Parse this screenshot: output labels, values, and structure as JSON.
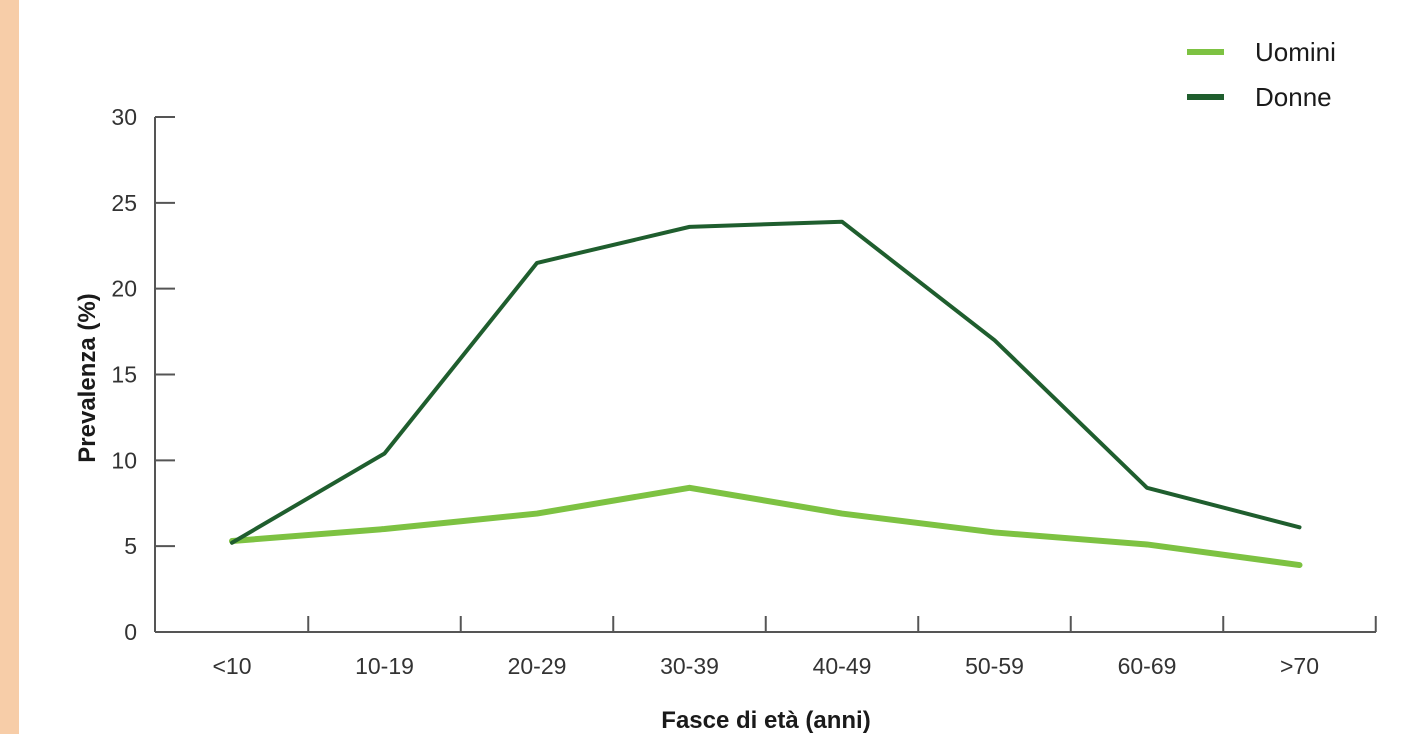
{
  "chart_data": {
    "type": "line",
    "categories": [
      "<10",
      "10-19",
      "20-29",
      "30-39",
      "40-49",
      "50-59",
      "60-69",
      ">70"
    ],
    "series": [
      {
        "name": "Uomini",
        "color": "#7dc242",
        "values": [
          5.3,
          6.0,
          6.9,
          8.4,
          6.9,
          5.8,
          5.1,
          3.9
        ]
      },
      {
        "name": "Donne",
        "color": "#1f5e2e",
        "values": [
          5.2,
          10.4,
          21.5,
          23.6,
          23.9,
          17.0,
          8.4,
          6.1
        ]
      }
    ],
    "title": "",
    "xlabel": "Fasce di età (anni)",
    "ylabel": "Prevalenza (%)",
    "ylim": [
      0,
      30
    ],
    "yticks": [
      0,
      5,
      10,
      15,
      20,
      25,
      30
    ],
    "grid": false,
    "legend_position": "top-right"
  },
  "style": {
    "stripe_color": "#f7cda8",
    "axis_color": "#555555"
  }
}
